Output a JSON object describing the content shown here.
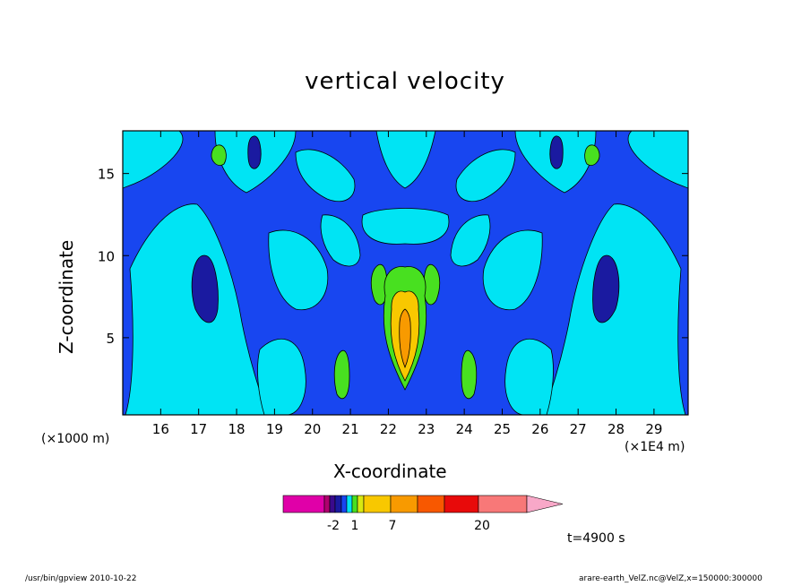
{
  "chart_data": {
    "type": "heatmap",
    "title": "vertical velocity",
    "xlabel": "X-coordinate",
    "ylabel": "Z-coordinate",
    "x_unit_left": "(×1000 m)",
    "x_unit_right": "(×1E4 m)",
    "x_ticks": [
      16,
      17,
      18,
      19,
      20,
      21,
      22,
      23,
      24,
      25,
      26,
      27,
      28,
      29
    ],
    "y_ticks": [
      5,
      10,
      15
    ],
    "xlim": [
      15.0,
      29.9
    ],
    "ylim": [
      0.3,
      17.6
    ],
    "colorbar": {
      "tick_labels": [
        "-2",
        "1",
        "7",
        "20"
      ],
      "colors": [
        "#e000a8",
        "#b0006e",
        "#3a0a8c",
        "#1a1aa0",
        "#1846f0",
        "#00e4f4",
        "#48e020",
        "#d8e810",
        "#f8c800",
        "#f89a00",
        "#f85800",
        "#e80a0a",
        "#f87878",
        "#f8a8c8"
      ]
    },
    "field_colors": {
      "negative": "#1846f0",
      "strong_negative": "#1a1aa0",
      "near_zero": "#00e4f4",
      "weak_positive": "#48e020",
      "positive": "#f8c800",
      "strong_positive": "#f89a00"
    },
    "time_label": "t=4900 s"
  },
  "footer": {
    "program": "/usr/bin/gpview   2010-10-22",
    "source": "arare-earth_VelZ.nc@VelZ,x=150000:300000"
  }
}
